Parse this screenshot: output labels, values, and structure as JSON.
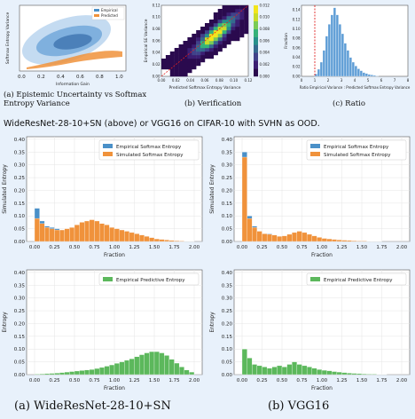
{
  "captions": {
    "a": "(a) Epistemic Uncertainty vs Softmax Entropy Variance",
    "b": "(b) Verification",
    "c": "(c) Ratio",
    "middle": "WideResNet-28-10+SN (above) or VGG16 on CIFAR-10 with SVHN as OOD.",
    "bottom_left": "(a) WideResNet-28-10+SN",
    "bottom_right": "(b) VGG16"
  },
  "colors": {
    "empirical": "#4a90c8",
    "predicted": "#f0923b",
    "simulated": "#f0923b",
    "predictive": "#5cb85c",
    "ratio_bar": "#5b9bd5",
    "ratio_line": "#e02020"
  },
  "chart_data": [
    {
      "id": "top_a",
      "type": "density",
      "xlabel": "Information Gain",
      "ylabel": "Softmax Entropy Variance",
      "xticks": [
        "0.0",
        "0.2",
        "0.4",
        "0.6",
        "0.8",
        "1.0"
      ],
      "legend": [
        "Empirical",
        "Predicted"
      ],
      "legend_position": "top-right"
    },
    {
      "id": "top_b",
      "type": "heatmap",
      "xlabel": "Predicted Softmax Entropy Variance",
      "ylabel": "Empirical SE Variance",
      "xticks": [
        "0.00",
        "0.02",
        "0.04",
        "0.06",
        "0.08",
        "0.10",
        "0.12"
      ],
      "yticks": [
        "0.00",
        "0.02",
        "0.04",
        "0.06",
        "0.08",
        "0.10",
        "0.12"
      ],
      "colorbar_ticks": [
        "0.000",
        "0.002",
        "0.004",
        "0.006",
        "0.008",
        "0.010",
        "0.012"
      ]
    },
    {
      "id": "top_c",
      "type": "bar",
      "xlabel": "Ratio Empirical Variance : Predicted Softmax Entropy Variance",
      "ylabel": "Fraction",
      "xticks": [
        "0",
        "1",
        "2",
        "3",
        "4",
        "5",
        "6",
        "7",
        "8"
      ],
      "yticks": [
        "0.00",
        "0.02",
        "0.04",
        "0.06",
        "0.08",
        "0.10",
        "0.12",
        "0.14"
      ],
      "xlim": [
        0,
        8
      ],
      "ylim": [
        0,
        0.15
      ],
      "vline": 1.0,
      "x": [
        1.0,
        1.2,
        1.4,
        1.6,
        1.8,
        2.0,
        2.2,
        2.4,
        2.6,
        2.8,
        3.0,
        3.2,
        3.4,
        3.6,
        3.8,
        4.0,
        4.2,
        4.4,
        4.6,
        4.8,
        5.0,
        5.2,
        5.4,
        5.6
      ],
      "values": [
        0.005,
        0.015,
        0.03,
        0.055,
        0.085,
        0.11,
        0.13,
        0.145,
        0.13,
        0.11,
        0.09,
        0.07,
        0.055,
        0.04,
        0.03,
        0.022,
        0.016,
        0.012,
        0.008,
        0.006,
        0.004,
        0.003,
        0.002,
        0.001
      ]
    },
    {
      "id": "mid_left",
      "type": "bar",
      "xlabel": "Fraction",
      "ylabel": "Simulated Entropy",
      "xticks": [
        "0.00",
        "0.25",
        "0.50",
        "0.75",
        "1.00",
        "1.25",
        "1.50",
        "1.75",
        "2.00"
      ],
      "yticks": [
        "0.00",
        "0.05",
        "0.10",
        "0.15",
        "0.20",
        "0.25",
        "0.30",
        "0.35",
        "0.40"
      ],
      "xlim": [
        -0.1,
        2.1
      ],
      "ylim": [
        0,
        0.41
      ],
      "bin_width": 0.0625,
      "legend_position": "top-right",
      "series": [
        {
          "name": "Empirical Softmax Entropy",
          "x0": 0.0,
          "values": [
            0.13,
            0.08,
            0.06,
            0.055,
            0.05,
            0.045,
            0.04,
            0.05,
            0.06,
            0.07,
            0.075,
            0.08,
            0.075,
            0.065,
            0.06,
            0.055,
            0.05,
            0.045,
            0.04,
            0.035,
            0.03,
            0.025,
            0.02,
            0.015,
            0.01,
            0.008,
            0.006,
            0.004,
            0.003,
            0.002,
            0.001,
            0.001
          ]
        },
        {
          "name": "Simulated Softmax Entropy",
          "x0": 0.0,
          "values": [
            0.09,
            0.07,
            0.055,
            0.05,
            0.045,
            0.045,
            0.05,
            0.055,
            0.065,
            0.075,
            0.08,
            0.085,
            0.08,
            0.07,
            0.065,
            0.055,
            0.05,
            0.045,
            0.04,
            0.035,
            0.03,
            0.025,
            0.02,
            0.015,
            0.01,
            0.008,
            0.006,
            0.004,
            0.003,
            0.002,
            0.001,
            0.001
          ]
        }
      ]
    },
    {
      "id": "mid_right",
      "type": "bar",
      "xlabel": "Fraction",
      "ylabel": "Simulated Entropy",
      "xticks": [
        "0.00",
        "0.25",
        "0.50",
        "0.75",
        "1.00",
        "1.25",
        "1.50",
        "1.75",
        "2.00"
      ],
      "yticks": [
        "0.00",
        "0.05",
        "0.10",
        "0.15",
        "0.20",
        "0.25",
        "0.30",
        "0.35",
        "0.40"
      ],
      "xlim": [
        -0.1,
        2.1
      ],
      "ylim": [
        0,
        0.41
      ],
      "bin_width": 0.0625,
      "legend_position": "top-right",
      "series": [
        {
          "name": "Empirical Softmax Entropy",
          "x0": 0.0,
          "values": [
            0.35,
            0.1,
            0.06,
            0.04,
            0.03,
            0.03,
            0.025,
            0.02,
            0.02,
            0.025,
            0.03,
            0.035,
            0.03,
            0.025,
            0.02,
            0.015,
            0.012,
            0.01,
            0.008,
            0.006,
            0.005,
            0.004,
            0.003,
            0.002,
            0.002,
            0.001,
            0.001,
            0.001,
            0.0,
            0.0,
            0.0,
            0.0
          ]
        },
        {
          "name": "Simulated Softmax Entropy",
          "x0": 0.0,
          "values": [
            0.33,
            0.09,
            0.055,
            0.04,
            0.03,
            0.028,
            0.025,
            0.02,
            0.022,
            0.028,
            0.035,
            0.04,
            0.035,
            0.028,
            0.022,
            0.016,
            0.012,
            0.01,
            0.008,
            0.006,
            0.005,
            0.004,
            0.003,
            0.002,
            0.002,
            0.001,
            0.001,
            0.001,
            0.0,
            0.0,
            0.0,
            0.0
          ]
        }
      ]
    },
    {
      "id": "bot_left",
      "type": "bar",
      "xlabel": "Fraction",
      "ylabel": "Entropy",
      "xticks": [
        "0.00",
        "0.25",
        "0.50",
        "0.75",
        "1.00",
        "1.25",
        "1.50",
        "1.75",
        "2.00"
      ],
      "yticks": [
        "0.00",
        "0.05",
        "0.10",
        "0.15",
        "0.20",
        "0.25",
        "0.30",
        "0.35",
        "0.40"
      ],
      "xlim": [
        -0.1,
        2.1
      ],
      "ylim": [
        0,
        0.41
      ],
      "bin_width": 0.0625,
      "legend_position": "top-right",
      "series": [
        {
          "name": "Empirical Predictive Entropy",
          "x0": 0.0,
          "values": [
            0.002,
            0.003,
            0.004,
            0.005,
            0.006,
            0.008,
            0.01,
            0.012,
            0.014,
            0.016,
            0.018,
            0.02,
            0.024,
            0.028,
            0.033,
            0.038,
            0.044,
            0.05,
            0.056,
            0.062,
            0.07,
            0.078,
            0.085,
            0.09,
            0.09,
            0.085,
            0.075,
            0.06,
            0.045,
            0.03,
            0.018,
            0.01
          ]
        }
      ]
    },
    {
      "id": "bot_right",
      "type": "bar",
      "xlabel": "Fraction",
      "ylabel": "Entropy",
      "xticks": [
        "0.00",
        "0.25",
        "0.50",
        "0.75",
        "1.00",
        "1.25",
        "1.50",
        "1.75",
        "2.00"
      ],
      "yticks": [
        "0.00",
        "0.05",
        "0.10",
        "0.15",
        "0.20",
        "0.25",
        "0.30",
        "0.35",
        "0.40"
      ],
      "xlim": [
        -0.1,
        2.1
      ],
      "ylim": [
        0,
        0.41
      ],
      "bin_width": 0.0625,
      "legend_position": "top-right",
      "series": [
        {
          "name": "Empirical Predictive Entropy",
          "x0": 0.0,
          "values": [
            0.1,
            0.065,
            0.04,
            0.035,
            0.03,
            0.025,
            0.03,
            0.035,
            0.03,
            0.04,
            0.05,
            0.04,
            0.035,
            0.03,
            0.025,
            0.02,
            0.017,
            0.015,
            0.012,
            0.01,
            0.008,
            0.006,
            0.005,
            0.004,
            0.003,
            0.002,
            0.002,
            0.001,
            0.001,
            0.0,
            0.0,
            0.0
          ]
        }
      ]
    }
  ]
}
